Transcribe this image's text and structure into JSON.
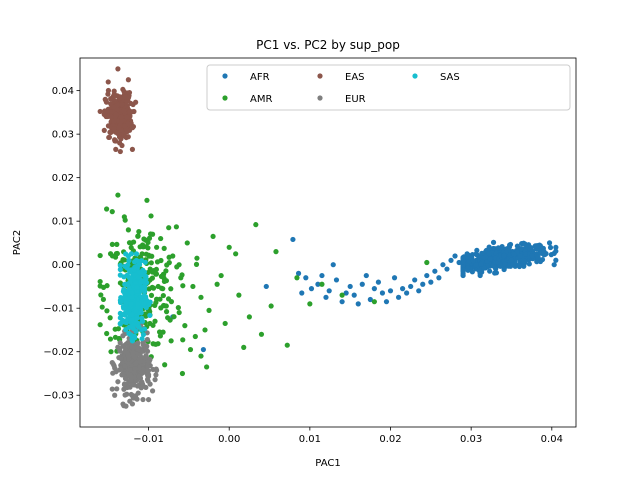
{
  "chart_data": {
    "type": "scatter",
    "title": "PC1 vs. PC2 by sup_pop",
    "xlabel": "PAC1",
    "ylabel": "PAC2",
    "xlim": [
      -0.0185,
      0.043
    ],
    "ylim": [
      -0.0373,
      0.0475
    ],
    "xticks": [
      -0.01,
      0.0,
      0.01,
      0.02,
      0.03,
      0.04
    ],
    "xtick_labels": [
      "−0.01",
      "0.00",
      "0.01",
      "0.02",
      "0.03",
      "0.04"
    ],
    "yticks": [
      -0.03,
      -0.02,
      -0.01,
      0.0,
      0.01,
      0.02,
      0.03,
      0.04
    ],
    "ytick_labels": [
      "−0.03",
      "−0.02",
      "−0.01",
      "0.00",
      "0.01",
      "0.02",
      "0.03",
      "0.04"
    ],
    "grid": false,
    "legend_position": "top-right",
    "series": [
      {
        "name": "AFR",
        "color": "#1f77b4",
        "points": [
          [
            -0.0122,
            -0.018
          ],
          [
            -0.0116,
            -0.0155
          ],
          [
            -0.0032,
            -0.0195
          ],
          [
            -0.007,
            -0.012
          ],
          [
            0.0046,
            -0.005
          ],
          [
            0.0079,
            0.0058
          ],
          [
            0.0086,
            -0.002
          ],
          [
            0.009,
            -0.0065
          ],
          [
            0.0095,
            -0.003
          ],
          [
            0.0102,
            -0.0055
          ],
          [
            0.011,
            -0.0045
          ],
          [
            0.0115,
            -0.0025
          ],
          [
            0.012,
            -0.0075
          ],
          [
            0.0124,
            -0.006
          ],
          [
            0.0129,
            0.0
          ],
          [
            0.0133,
            -0.0035
          ],
          [
            0.014,
            -0.0085
          ],
          [
            0.0145,
            -0.0065
          ],
          [
            0.015,
            -0.005
          ],
          [
            0.0155,
            -0.007
          ],
          [
            0.016,
            -0.009
          ],
          [
            0.0165,
            -0.0045
          ],
          [
            0.017,
            -0.0025
          ],
          [
            0.0175,
            -0.008
          ],
          [
            0.018,
            -0.0055
          ],
          [
            0.0185,
            -0.004
          ],
          [
            0.019,
            -0.0065
          ],
          [
            0.0195,
            -0.0085
          ],
          [
            0.02,
            -0.006
          ],
          [
            0.0205,
            -0.003
          ],
          [
            0.021,
            -0.0075
          ],
          [
            0.0215,
            -0.0055
          ],
          [
            0.022,
            -0.0065
          ],
          [
            0.0225,
            -0.005
          ],
          [
            0.023,
            -0.0035
          ],
          [
            0.0235,
            -0.006
          ],
          [
            0.024,
            -0.0045
          ],
          [
            0.0245,
            -0.0025
          ],
          [
            0.025,
            -0.004
          ],
          [
            0.0255,
            -0.0015
          ],
          [
            0.026,
            -0.003
          ],
          [
            0.0265,
            0.0
          ],
          [
            0.027,
            -0.001
          ],
          [
            0.0275,
            0.001
          ],
          [
            0.028,
            0.002
          ],
          [
            0.0285,
            0.0005
          ],
          [
            0.029,
            0.0015
          ],
          [
            0.0295,
            0.0025
          ]
        ],
        "cluster": {
          "cx": 0.034,
          "cy": 0.0015,
          "sx": 0.0028,
          "sy": 0.0012,
          "n": 480,
          "tilt": 0.25,
          "xmin": 0.029,
          "xmax": 0.0405,
          "ymin": -0.0025,
          "ymax": 0.0085
        }
      },
      {
        "name": "AMR",
        "color": "#2ca02c",
        "points": [
          [
            -0.0152,
            0.0128
          ],
          [
            -0.0145,
            0.0122
          ],
          [
            -0.0138,
            0.016
          ],
          [
            -0.013,
            0.011
          ],
          [
            -0.0125,
            0.008
          ],
          [
            -0.0102,
            0.0148
          ],
          [
            -0.0095,
            0.007
          ],
          [
            -0.009,
            0.004
          ],
          [
            -0.0085,
            0.006
          ],
          [
            -0.0075,
            0.0085
          ],
          [
            -0.007,
            0.002
          ],
          [
            -0.0065,
            -0.0005
          ],
          [
            -0.006,
            -0.003
          ],
          [
            -0.0052,
            0.005
          ],
          [
            -0.0045,
            -0.005
          ],
          [
            -0.004,
            0.0015
          ],
          [
            -0.0035,
            -0.0075
          ],
          [
            -0.003,
            -0.015
          ],
          [
            -0.0025,
            -0.0105
          ],
          [
            -0.002,
            0.0065
          ],
          [
            -0.0015,
            -0.0045
          ],
          [
            -0.001,
            -0.0025
          ],
          [
            -0.0005,
            -0.0135
          ],
          [
            0.0,
            0.004
          ],
          [
            0.0008,
            0.0025
          ],
          [
            0.0012,
            -0.007
          ],
          [
            0.0018,
            -0.019
          ],
          [
            0.0025,
            -0.012
          ],
          [
            0.0033,
            0.0092
          ],
          [
            0.004,
            -0.016
          ],
          [
            0.0052,
            -0.0095
          ],
          [
            0.0058,
            0.003
          ],
          [
            0.0072,
            -0.0185
          ],
          [
            0.0084,
            -0.003
          ],
          [
            0.01,
            -0.009
          ],
          [
            0.0115,
            -0.0045
          ],
          [
            0.014,
            -0.007
          ],
          [
            0.018,
            -0.0085
          ],
          [
            0.0245,
            0.0005
          ],
          [
            -0.008,
            -0.023
          ],
          [
            -0.0058,
            -0.025
          ],
          [
            -0.0048,
            -0.0195
          ],
          [
            -0.01,
            -0.022
          ],
          [
            -0.0105,
            -0.0075
          ],
          [
            -0.0115,
            -0.01
          ],
          [
            -0.0092,
            -0.013
          ],
          [
            -0.0082,
            -0.0155
          ],
          [
            -0.0072,
            -0.0175
          ],
          [
            -0.0062,
            -0.011
          ],
          [
            -0.0055,
            -0.014
          ],
          [
            -0.0042,
            -0.0165
          ],
          [
            -0.0035,
            -0.021
          ],
          [
            -0.0028,
            -0.0235
          ],
          [
            -0.0108,
            0.0025
          ],
          [
            -0.0098,
            -0.001
          ],
          [
            -0.0088,
            -0.005
          ],
          [
            -0.0078,
            -0.0095
          ]
        ],
        "cluster": {
          "cx": -0.011,
          "cy": -0.0055,
          "sx": 0.0022,
          "sy": 0.007,
          "n": 240,
          "tilt": 0.0,
          "xmin": -0.016,
          "xmax": -0.001,
          "ymin": -0.025,
          "ymax": 0.015
        }
      },
      {
        "name": "EAS",
        "color": "#8c564b",
        "points": [
          [
            -0.0138,
            0.045
          ],
          [
            -0.015,
            0.042
          ],
          [
            -0.0125,
            0.0425
          ],
          [
            -0.0135,
            0.026
          ],
          [
            -0.012,
            0.0265
          ]
        ],
        "cluster": {
          "cx": -0.0137,
          "cy": 0.0342,
          "sx": 0.0008,
          "sy": 0.0026,
          "n": 300,
          "tilt": 0.0,
          "xmin": -0.016,
          "xmax": -0.0115,
          "ymin": 0.0265,
          "ymax": 0.042
        }
      },
      {
        "name": "EUR",
        "color": "#7f7f7f",
        "points": [
          [
            -0.0128,
            -0.0325
          ],
          [
            -0.012,
            -0.032
          ],
          [
            -0.01,
            -0.031
          ],
          [
            -0.0095,
            -0.029
          ],
          [
            -0.0142,
            -0.03
          ]
        ],
        "cluster": {
          "cx": -0.0118,
          "cy": -0.023,
          "sx": 0.001,
          "sy": 0.0032,
          "n": 320,
          "tilt": 0.0,
          "xmin": -0.0145,
          "xmax": -0.009,
          "ymin": -0.0325,
          "ymax": -0.013
        }
      },
      {
        "name": "SAS",
        "color": "#17becf",
        "points": [
          [
            -0.0115,
            0.0025
          ],
          [
            -0.0125,
            0.002
          ],
          [
            -0.0108,
            -0.017
          ],
          [
            -0.012,
            -0.0175
          ]
        ],
        "cluster": {
          "cx": -0.0118,
          "cy": -0.0075,
          "sx": 0.0007,
          "sy": 0.004,
          "n": 340,
          "tilt": 0.0,
          "xmin": -0.0135,
          "xmax": -0.0098,
          "ymin": -0.018,
          "ymax": 0.0025
        }
      }
    ]
  }
}
